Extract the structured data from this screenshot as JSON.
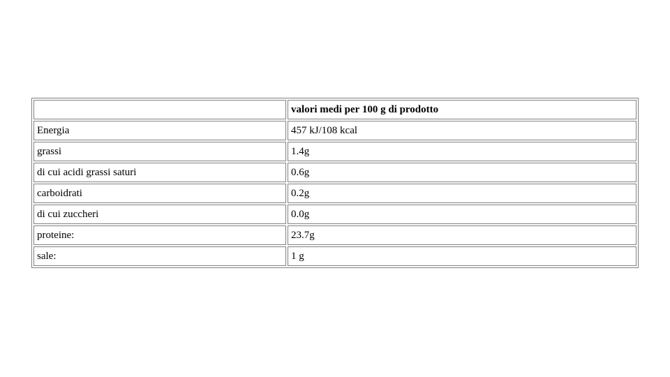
{
  "table": {
    "type": "table",
    "border_color": "#808080",
    "background_color": "#ffffff",
    "text_color": "#000000",
    "font_family": "Times New Roman",
    "font_size_pt": 11,
    "header_font_weight": "bold",
    "column_widths_pct": [
      42,
      58
    ],
    "header_empty": "",
    "header_value": "valori medi per 100 g di prodotto",
    "rows": [
      {
        "label": "Energia",
        "value": "457 kJ/108 kcal"
      },
      {
        "label": "grassi",
        "value": "1.4g"
      },
      {
        "label": "di cui acidi grassi saturi",
        "value": "0.6g"
      },
      {
        "label": "carboidrati",
        "value": "0.2g"
      },
      {
        "label": "di cui zuccheri",
        "value": "0.0g"
      },
      {
        "label": "proteine:",
        "value": "23.7g"
      },
      {
        "label": "sale:",
        "value": "1 g"
      }
    ]
  }
}
